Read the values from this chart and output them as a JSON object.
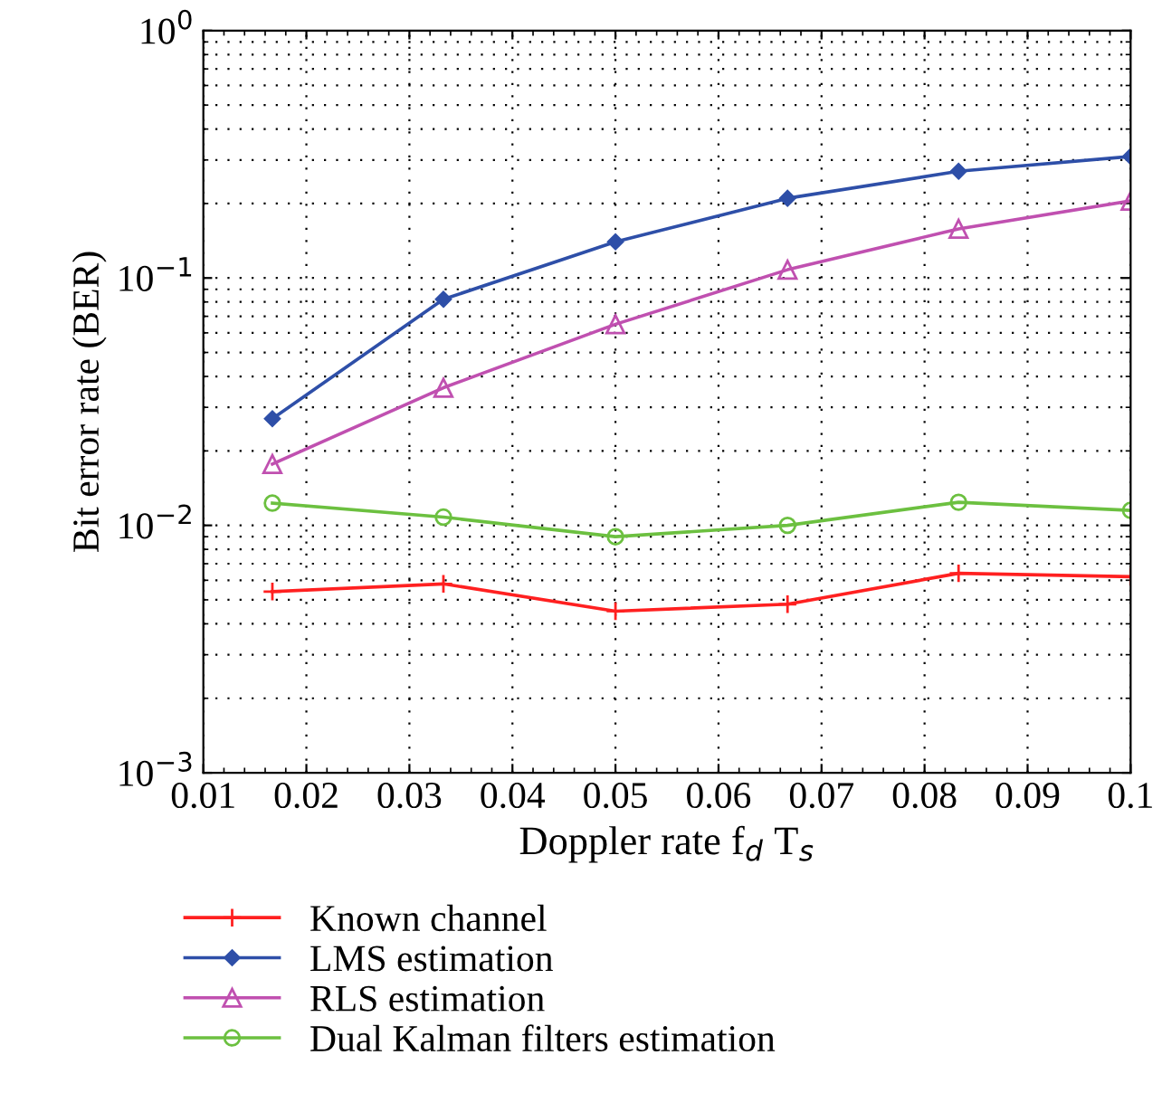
{
  "chart_data": {
    "type": "line",
    "xlabel": "Doppler rate f$_{d}$ T$_{s}$",
    "ylabel": "Bit error rate (BER)",
    "x": [
      0.0167,
      0.0333,
      0.05,
      0.0667,
      0.0833,
      0.1
    ],
    "series": [
      {
        "name": "Known channel",
        "color": "#ff2020",
        "marker": "cross",
        "values": [
          0.0054,
          0.0058,
          0.0045,
          0.0048,
          0.0064,
          0.0062
        ]
      },
      {
        "name": "LMS estimation",
        "color": "#2e4fa8",
        "marker": "diamond",
        "values": [
          0.027,
          0.082,
          0.14,
          0.21,
          0.27,
          0.31
        ]
      },
      {
        "name": "RLS estimation",
        "color": "#c050b0",
        "marker": "triangle",
        "values": [
          0.0177,
          0.036,
          0.065,
          0.108,
          0.158,
          0.205
        ]
      },
      {
        "name": "Dual Kalman filters estimation",
        "color": "#6cc040",
        "marker": "circle",
        "values": [
          0.0123,
          0.0108,
          0.009,
          0.01,
          0.0124,
          0.0115
        ]
      }
    ],
    "log": "y",
    "xlim": [
      0.01,
      0.1
    ],
    "ylim": [
      0.001,
      1
    ],
    "xticks": [
      0.01,
      0.02,
      0.03,
      0.04,
      0.05,
      0.06,
      0.07,
      0.08,
      0.09,
      0.1
    ],
    "yticks": [
      {
        "value": 0.001,
        "label": "10$^{−3}$"
      },
      {
        "value": 0.01,
        "label": "10$^{−2}$"
      },
      {
        "value": 0.1,
        "label": "10$^{−1}$"
      },
      {
        "value": 1,
        "label": "10$^{0}$"
      }
    ],
    "grid": true,
    "legend": "bottom",
    "line_style": "solid"
  }
}
